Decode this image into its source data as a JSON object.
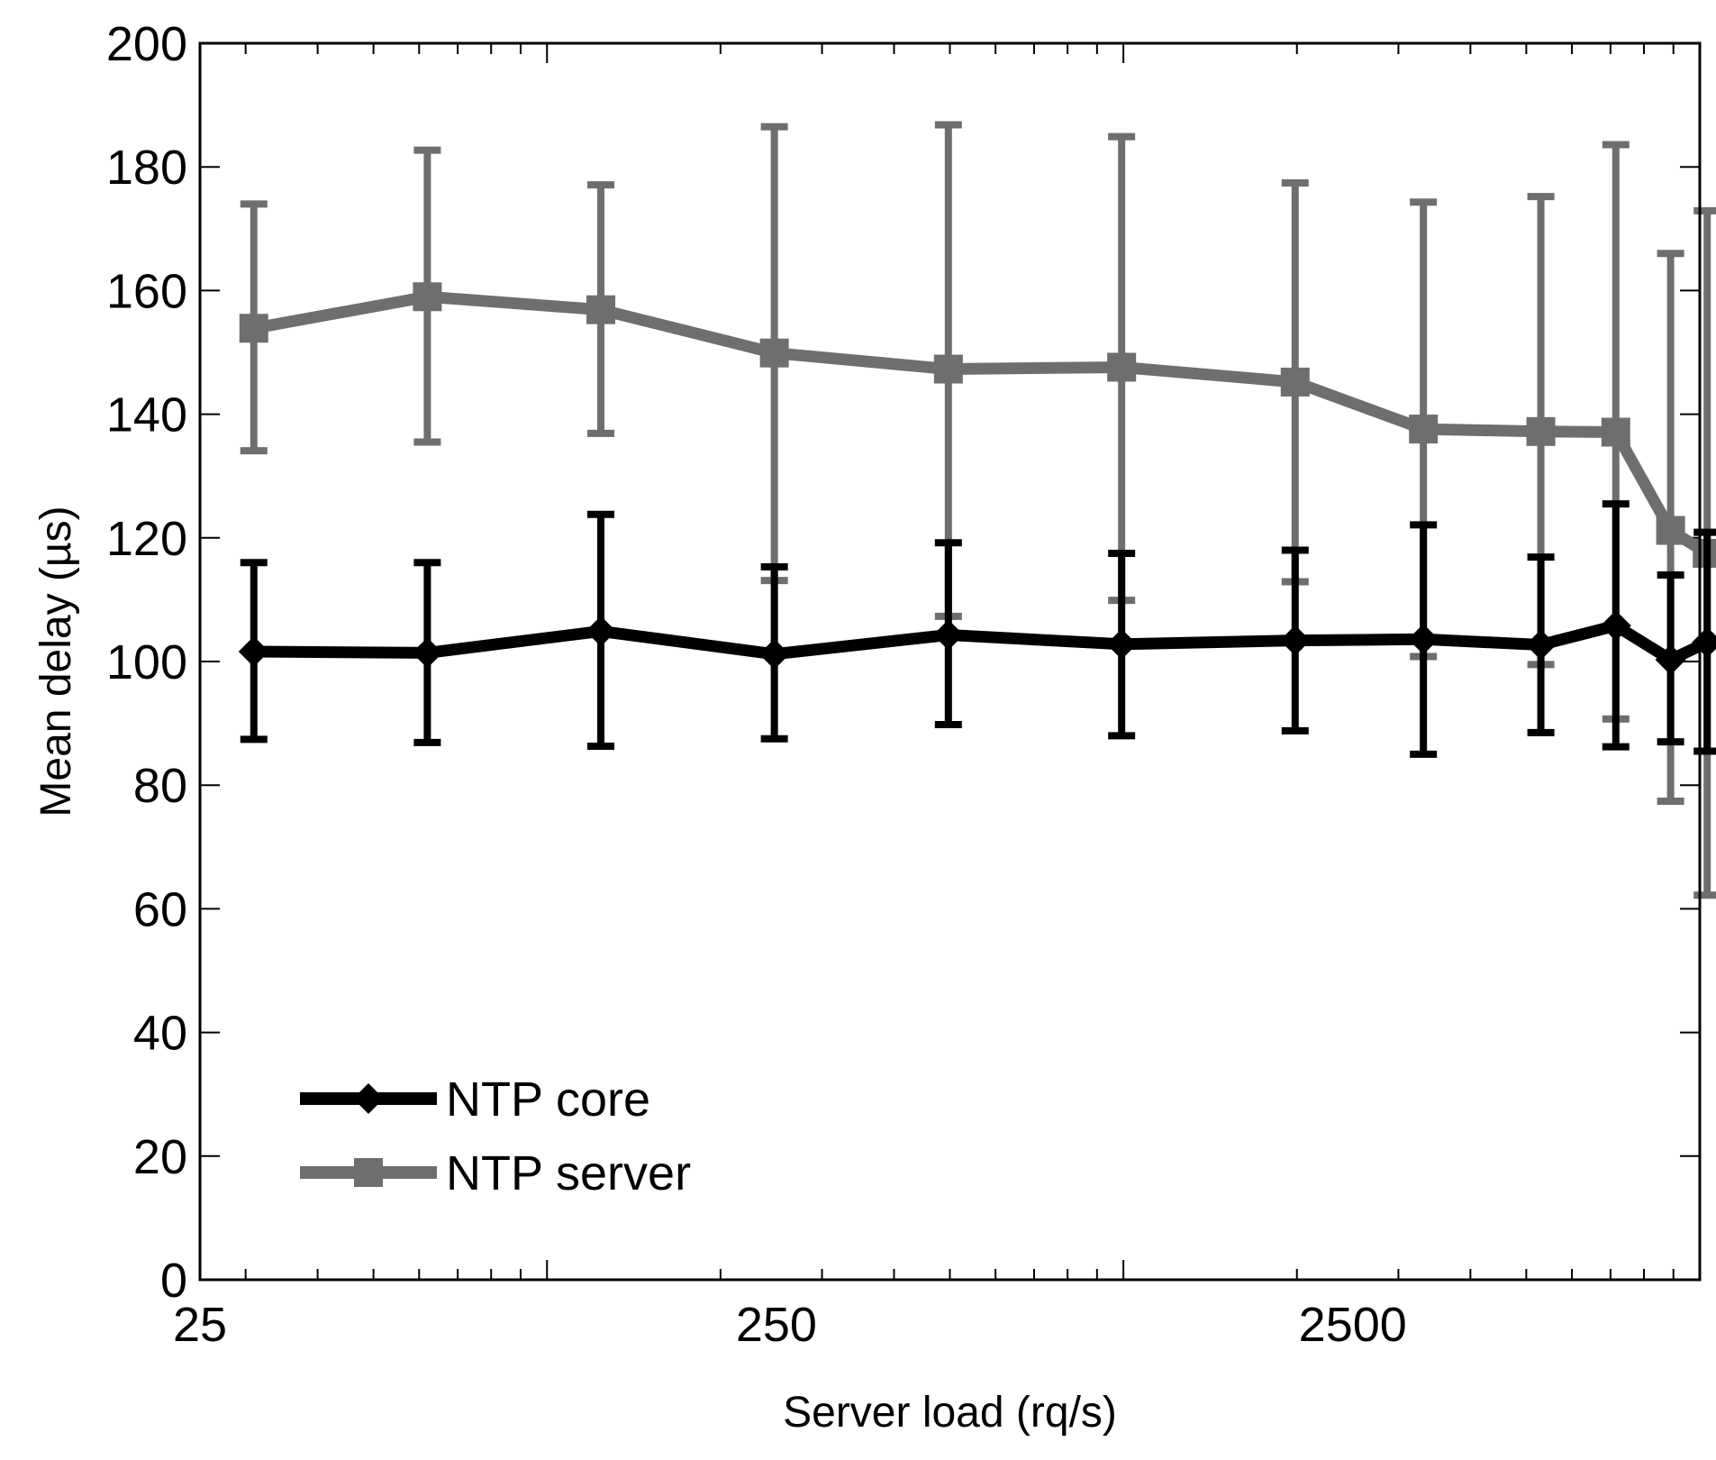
{
  "chart_data": {
    "type": "line",
    "title": "",
    "xlabel": "Server load (rq/s)",
    "ylabel": "Mean delay (µs)",
    "xscale": "log",
    "xlim": [
      25,
      10000
    ],
    "ylim": [
      0,
      200
    ],
    "x_ticks": [
      25,
      250,
      2500
    ],
    "y_ticks": [
      0,
      20,
      40,
      60,
      80,
      100,
      120,
      140,
      160,
      180,
      200
    ],
    "grid": false,
    "legend_position": "bottom-left",
    "series": [
      {
        "name": "NTP core",
        "color": "#000000",
        "marker": "diamond",
        "x": [
          31,
          62,
          124,
          248,
          497,
          993,
          1986,
          3315,
          5300,
          7150,
          8900,
          10300
        ],
        "y": [
          101.6,
          101.4,
          104.9,
          101.2,
          104.3,
          102.8,
          103.4,
          103.6,
          102.7,
          105.8,
          100.3,
          103.1
        ],
        "err_low": [
          87.4,
          86.9,
          86.3,
          87.5,
          89.8,
          88.0,
          88.8,
          85.0,
          88.5,
          86.2,
          87.0,
          85.5
        ],
        "err_high": [
          116.0,
          116.0,
          123.8,
          115.3,
          119.2,
          117.5,
          118.0,
          122.1,
          116.9,
          125.5,
          114.0,
          120.9
        ]
      },
      {
        "name": "NTP server",
        "color": "#6e6e6e",
        "marker": "square",
        "x": [
          31,
          62,
          124,
          248,
          497,
          993,
          1986,
          3315,
          5300,
          7150,
          8900,
          10300
        ],
        "y": [
          153.9,
          159.0,
          156.9,
          149.9,
          147.3,
          147.6,
          145.2,
          137.6,
          137.2,
          137.1,
          121.2,
          117.5
        ],
        "err_low": [
          134.1,
          135.5,
          136.9,
          113.1,
          107.3,
          109.9,
          112.9,
          100.8,
          99.5,
          90.7,
          77.4,
          62.2
        ],
        "err_high": [
          174.0,
          182.7,
          177.1,
          186.5,
          186.8,
          184.9,
          177.4,
          174.3,
          175.2,
          183.6,
          166.0,
          172.9
        ]
      }
    ]
  }
}
